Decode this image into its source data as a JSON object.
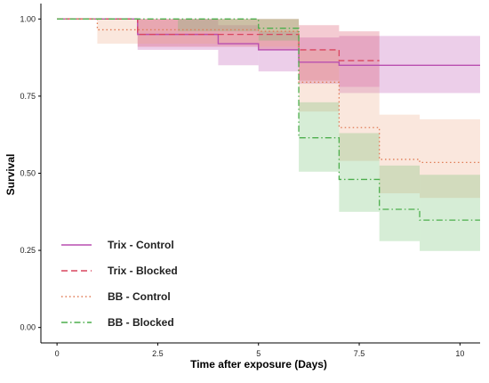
{
  "chart_data": {
    "type": "line",
    "subtype": "kaplan-meier step plot with confidence bands",
    "title": "",
    "xlabel": "Time after exposure (Days)",
    "ylabel": "Survival",
    "xlim": [
      -0.4,
      10.5
    ],
    "ylim": [
      -0.05,
      1.05
    ],
    "xticks": [
      0,
      2.5,
      5,
      7.5,
      10
    ],
    "xtick_labels": [
      "0",
      "2.5",
      "5",
      "7.5",
      "10"
    ],
    "yticks": [
      0,
      0.25,
      0.5,
      0.75,
      1
    ],
    "ytick_labels": [
      "0.00",
      "0.25",
      "0.50",
      "0.75",
      "1.00"
    ],
    "grid": false,
    "legend_position": "bottom-left",
    "series": [
      {
        "name": "Trix - Control",
        "color": "#b94fb0",
        "band_color": "#b94fb0",
        "linestyle": "solid",
        "steps": [
          {
            "x0": 0,
            "x1": 2,
            "y": 1.0,
            "lo": 1.0,
            "hi": 1.0
          },
          {
            "x0": 2,
            "x1": 4,
            "y": 0.95,
            "lo": 0.9,
            "hi": 1.0
          },
          {
            "x0": 4,
            "x1": 5,
            "y": 0.92,
            "lo": 0.85,
            "hi": 0.98
          },
          {
            "x0": 5,
            "x1": 6,
            "y": 0.9,
            "lo": 0.83,
            "hi": 0.96
          },
          {
            "x0": 6,
            "x1": 7,
            "y": 0.86,
            "lo": 0.79,
            "hi": 0.94
          },
          {
            "x0": 7,
            "x1": 10.5,
            "y": 0.85,
            "lo": 0.76,
            "hi": 0.945
          }
        ]
      },
      {
        "name": "Trix - Blocked",
        "color": "#d9455f",
        "band_color": "#d9455f",
        "linestyle": "dashed",
        "steps": [
          {
            "x0": 0,
            "x1": 2,
            "y": 1.0,
            "lo": 1.0,
            "hi": 1.0
          },
          {
            "x0": 2,
            "x1": 3,
            "y": 0.95,
            "lo": 0.91,
            "hi": 1.0
          },
          {
            "x0": 3,
            "x1": 5,
            "y": 0.95,
            "lo": 0.91,
            "hi": 1.0
          },
          {
            "x0": 5,
            "x1": 6,
            "y": 0.95,
            "lo": 0.9,
            "hi": 1.0
          },
          {
            "x0": 6,
            "x1": 7,
            "y": 0.9,
            "lo": 0.8,
            "hi": 0.98
          },
          {
            "x0": 7,
            "x1": 8,
            "y": 0.865,
            "lo": 0.78,
            "hi": 0.96
          }
        ]
      },
      {
        "name": "BB - Control",
        "color": "#e07b55",
        "band_color": "#ecaa85",
        "linestyle": "dotted",
        "steps": [
          {
            "x0": 0,
            "x1": 1,
            "y": 1.0,
            "lo": 1.0,
            "hi": 1.0
          },
          {
            "x0": 1,
            "x1": 3,
            "y": 0.965,
            "lo": 0.92,
            "hi": 1.0
          },
          {
            "x0": 3,
            "x1": 5,
            "y": 0.965,
            "lo": 0.92,
            "hi": 1.0
          },
          {
            "x0": 5,
            "x1": 6,
            "y": 0.96,
            "lo": 0.91,
            "hi": 1.0
          },
          {
            "x0": 6,
            "x1": 7,
            "y": 0.795,
            "lo": 0.7,
            "hi": 0.9
          },
          {
            "x0": 7,
            "x1": 8,
            "y": 0.648,
            "lo": 0.54,
            "hi": 0.78
          },
          {
            "x0": 8,
            "x1": 9,
            "y": 0.545,
            "lo": 0.435,
            "hi": 0.69
          },
          {
            "x0": 9,
            "x1": 10.5,
            "y": 0.535,
            "lo": 0.42,
            "hi": 0.675
          }
        ]
      },
      {
        "name": "BB - Blocked",
        "color": "#4cae4c",
        "band_color": "#6cc06c",
        "linestyle": "dashdot",
        "steps": [
          {
            "x0": 0,
            "x1": 3,
            "y": 1.0,
            "lo": 1.0,
            "hi": 1.0
          },
          {
            "x0": 3,
            "x1": 5,
            "y": 1.0,
            "lo": 0.96,
            "hi": 1.0
          },
          {
            "x0": 5,
            "x1": 6,
            "y": 0.97,
            "lo": 0.93,
            "hi": 1.0
          },
          {
            "x0": 6,
            "x1": 7,
            "y": 0.615,
            "lo": 0.505,
            "hi": 0.73
          },
          {
            "x0": 7,
            "x1": 8,
            "y": 0.48,
            "lo": 0.375,
            "hi": 0.63
          },
          {
            "x0": 8,
            "x1": 9,
            "y": 0.383,
            "lo": 0.28,
            "hi": 0.525
          },
          {
            "x0": 9,
            "x1": 10.5,
            "y": 0.348,
            "lo": 0.248,
            "hi": 0.495
          }
        ]
      }
    ]
  }
}
